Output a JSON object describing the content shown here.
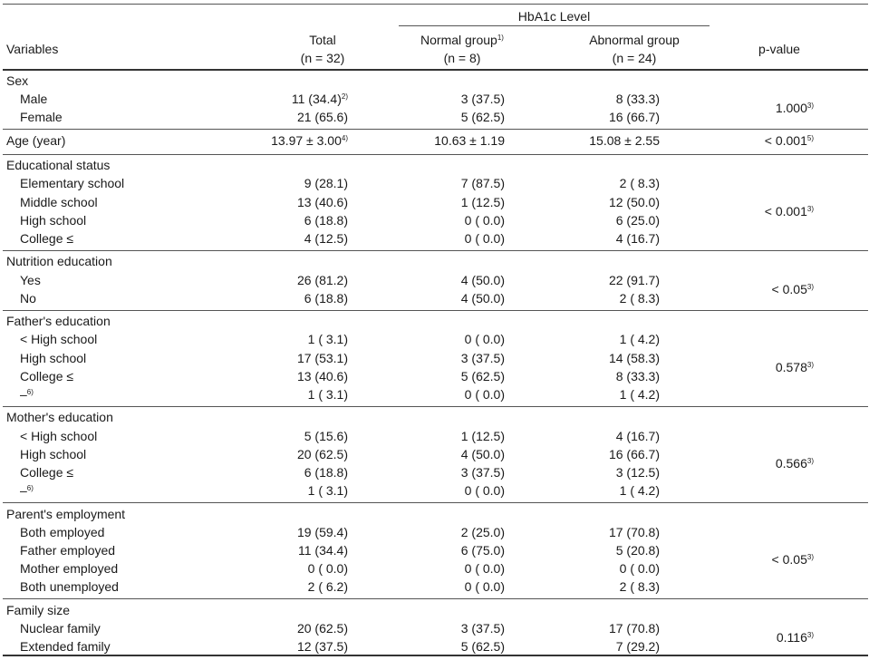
{
  "header": {
    "hba1c": "HbA1c Level",
    "variables": "Variables",
    "total": "Total",
    "total_n": "(n = 32)",
    "normal": "Normal group",
    "normal_sup": "1)",
    "normal_n": "(n = 8)",
    "abnormal": "Abnormal group",
    "abnormal_n": "(n = 24)",
    "pvalue": "p-value"
  },
  "groups": [
    {
      "label": "Sex",
      "rows": [
        {
          "label": "Male",
          "total": "11 (34.4)",
          "total_sup": "2)",
          "normal": "3 (37.5)",
          "abnormal": "8 (33.3)"
        },
        {
          "label": "Female",
          "total": "21 (65.6)",
          "normal": "5 (62.5)",
          "abnormal": "16 (66.7)"
        }
      ],
      "pvalue": "1.000",
      "pvalue_sup": "3)"
    },
    {
      "label": "Age (year)",
      "inline": true,
      "total": "13.97 ± 3.00",
      "total_sup": "4)",
      "normal": "10.63 ± 1.19",
      "abnormal": "15.08 ± 2.55",
      "pvalue": "< 0.001",
      "pvalue_sup": "5)"
    },
    {
      "label": "Educational status",
      "rows": [
        {
          "label": "Elementary school",
          "total": "9 (28.1)",
          "normal": "7 (87.5)",
          "abnormal": "2 ( 8.3)"
        },
        {
          "label": "Middle school",
          "total": "13 (40.6)",
          "normal": "1 (12.5)",
          "abnormal": "12 (50.0)"
        },
        {
          "label": "High school",
          "total": "6 (18.8)",
          "normal": "0 ( 0.0)",
          "abnormal": "6 (25.0)"
        },
        {
          "label": "College ≤",
          "total": "4 (12.5)",
          "normal": "0 ( 0.0)",
          "abnormal": "4 (16.7)"
        }
      ],
      "pvalue": "< 0.001",
      "pvalue_sup": "3)"
    },
    {
      "label": "Nutrition education",
      "rows": [
        {
          "label": "Yes",
          "total": "26 (81.2)",
          "normal": "4 (50.0)",
          "abnormal": "22 (91.7)"
        },
        {
          "label": "No",
          "total": "6 (18.8)",
          "normal": "4 (50.0)",
          "abnormal": "2 ( 8.3)"
        }
      ],
      "pvalue": "< 0.05",
      "pvalue_sup": "3)"
    },
    {
      "label": "Father's education",
      "rows": [
        {
          "label": "< High school",
          "total": "1 ( 3.1)",
          "normal": "0 ( 0.0)",
          "abnormal": "1 ( 4.2)"
        },
        {
          "label": "High school",
          "total": "17 (53.1)",
          "normal": "3 (37.5)",
          "abnormal": "14 (58.3)"
        },
        {
          "label": "College ≤",
          "total": "13 (40.6)",
          "normal": "5 (62.5)",
          "abnormal": "8 (33.3)"
        },
        {
          "label": "–",
          "label_sup": "6)",
          "total": "1 ( 3.1)",
          "normal": "0 ( 0.0)",
          "abnormal": "1 ( 4.2)"
        }
      ],
      "pvalue": "0.578",
      "pvalue_sup": "3)"
    },
    {
      "label": "Mother's education",
      "rows": [
        {
          "label": "< High school",
          "total": "5 (15.6)",
          "normal": "1 (12.5)",
          "abnormal": "4 (16.7)"
        },
        {
          "label": "High school",
          "total": "20 (62.5)",
          "normal": "4 (50.0)",
          "abnormal": "16 (66.7)"
        },
        {
          "label": "College ≤",
          "total": "6 (18.8)",
          "normal": "3 (37.5)",
          "abnormal": "3 (12.5)"
        },
        {
          "label": "–",
          "label_sup": "6)",
          "total": "1 ( 3.1)",
          "normal": "0 ( 0.0)",
          "abnormal": "1 ( 4.2)"
        }
      ],
      "pvalue": "0.566",
      "pvalue_sup": "3)"
    },
    {
      "label": "Parent's employment",
      "rows": [
        {
          "label": "Both employed",
          "total": "19 (59.4)",
          "normal": "2 (25.0)",
          "abnormal": "17 (70.8)"
        },
        {
          "label": "Father employed",
          "total": "11 (34.4)",
          "normal": "6 (75.0)",
          "abnormal": "5 (20.8)"
        },
        {
          "label": "Mother employed",
          "total": "0 ( 0.0)",
          "normal": "0 ( 0.0)",
          "abnormal": "0 ( 0.0)"
        },
        {
          "label": "Both unemployed",
          "total": "2 ( 6.2)",
          "normal": "0 ( 0.0)",
          "abnormal": "2 ( 8.3)"
        }
      ],
      "pvalue": "< 0.05",
      "pvalue_sup": "3)"
    },
    {
      "label": "Family size",
      "rows": [
        {
          "label": "Nuclear family",
          "total": "20 (62.5)",
          "normal": "3 (37.5)",
          "abnormal": "17 (70.8)"
        },
        {
          "label": "Extended family",
          "total": "12 (37.5)",
          "normal": "5 (62.5)",
          "abnormal": "7 (29.2)"
        }
      ],
      "pvalue": "0.116",
      "pvalue_sup": "3)"
    }
  ]
}
